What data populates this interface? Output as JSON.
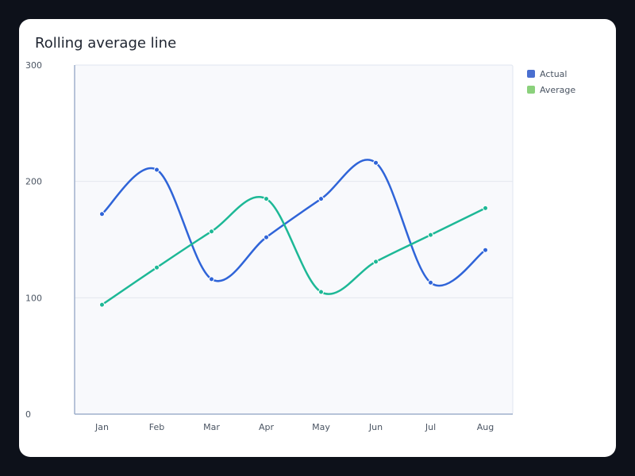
{
  "chart_data": {
    "type": "line",
    "title": "Rolling average line",
    "xlabel": "",
    "ylabel": "",
    "categories": [
      "Jan",
      "Feb",
      "Mar",
      "Apr",
      "May",
      "Jun",
      "Jul",
      "Aug"
    ],
    "ylim": [
      0,
      300
    ],
    "yticks": [
      0,
      100,
      200,
      300
    ],
    "grid": true,
    "legend": "right",
    "series": [
      {
        "name": "Actual",
        "color": "#2f64d8",
        "legend_color": "#4a6fd0",
        "x": [
          "Jan",
          "Feb",
          "Mar",
          "Apr",
          "May",
          "Jun",
          "Jul",
          "Aug"
        ],
        "values": [
          172,
          210,
          116,
          152,
          185,
          216,
          113,
          141
        ]
      },
      {
        "name": "Average",
        "color": "#1db896",
        "legend_color": "#8bd17c",
        "x": [
          "Jan",
          "Feb",
          "Mar",
          "Apr",
          "May",
          "Jun",
          "Jul",
          "Aug"
        ],
        "values": [
          94,
          126,
          157,
          185,
          105,
          131,
          154,
          177
        ]
      }
    ]
  }
}
